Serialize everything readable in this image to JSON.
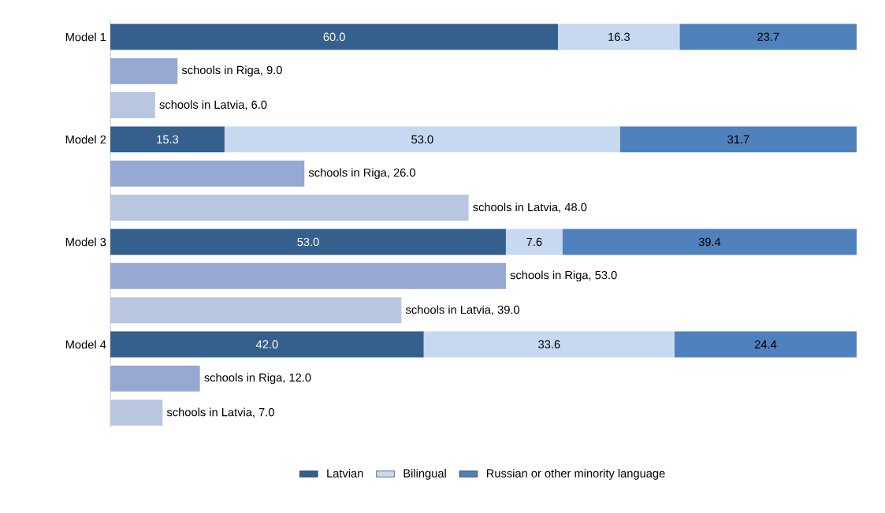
{
  "chart_data": {
    "type": "bar",
    "orientation": "horizontal",
    "stacked": true,
    "legend": "bottom",
    "categories": [
      "Model 1",
      null,
      null,
      "Model 2",
      null,
      null,
      "Model 3",
      null,
      null,
      "Model 4",
      null,
      null
    ],
    "series": [
      {
        "name": "Latvian",
        "color": "#355f8d",
        "values": [
          60.0,
          null,
          null,
          15.3,
          null,
          null,
          53.0,
          null,
          null,
          42.0,
          null,
          null
        ],
        "value_labels": [
          "60.0",
          null,
          null,
          "15.3",
          null,
          null,
          "53.0",
          null,
          null,
          "42.0",
          null,
          null
        ]
      },
      {
        "name": "Bilingual",
        "color": "#c6d9f1",
        "values": [
          16.3,
          null,
          null,
          53.0,
          null,
          null,
          7.6,
          null,
          null,
          33.6,
          null,
          null
        ],
        "value_labels": [
          "16.3",
          null,
          null,
          "53.0",
          null,
          null,
          "7.6",
          null,
          null,
          "33.6",
          null,
          null
        ]
      },
      {
        "name": "Russian or other minority language",
        "color": "#4f81bd",
        "values": [
          23.7,
          null,
          null,
          31.7,
          null,
          null,
          39.4,
          null,
          null,
          24.4,
          null,
          null
        ],
        "value_labels": [
          "23.7",
          null,
          null,
          "31.7",
          null,
          null,
          "39.4",
          null,
          null,
          "24.4",
          null,
          null
        ]
      },
      {
        "color": "#95a8d1",
        "values": [
          null,
          9.0,
          null,
          null,
          26.0,
          null,
          null,
          53.0,
          null,
          null,
          12.0,
          null
        ],
        "value_labels": [
          null,
          "schools in Riga, 9.0",
          null,
          null,
          "schools in Riga, 26.0",
          null,
          null,
          "schools in Riga, 53.0",
          null,
          null,
          "schools in Riga, 12.0",
          null
        ]
      },
      {
        "color": "#b9c6e0",
        "values": [
          null,
          null,
          6.0,
          null,
          null,
          48.0,
          null,
          null,
          39.0,
          null,
          null,
          7.0
        ],
        "value_labels": [
          null,
          null,
          "schools in Latvia, 6.0",
          null,
          null,
          "schools in Latvia, 48.0",
          null,
          null,
          "schools in Latvia, 39.0",
          null,
          null,
          "schools in Latvia, 7.0"
        ]
      }
    ]
  }
}
